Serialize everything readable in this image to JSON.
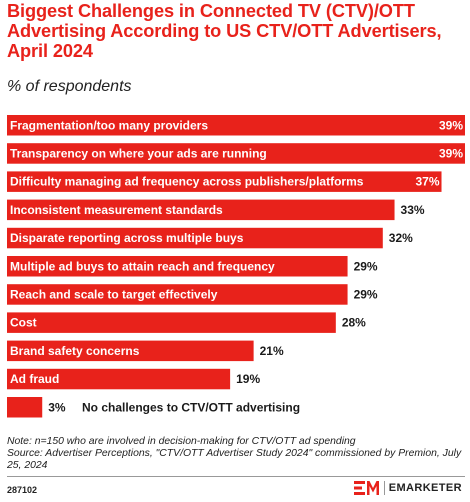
{
  "header": {
    "title": "Biggest Challenges in Connected TV (CTV)/OTT Advertising According to US CTV/OTT Advertisers, April 2024",
    "subtitle": "% of respondents"
  },
  "chart_data": {
    "type": "bar",
    "orientation": "horizontal",
    "bar_color": "#e8221b",
    "categories": [
      "Fragmentation/too many providers",
      "Transparency on where your ads are running",
      "Difficulty managing ad frequency across publishers/platforms",
      "Inconsistent measurement standards",
      "Disparate reporting across multiple buys",
      "Multiple ad buys to attain reach and frequency",
      "Reach and scale to target effectively",
      "Cost",
      "Brand safety concerns",
      "Ad fraud",
      "No challenges to CTV/OTT advertising"
    ],
    "values": [
      39,
      39,
      37,
      33,
      32,
      29,
      29,
      28,
      21,
      19,
      3
    ],
    "value_labels": [
      "39%",
      "39%",
      "37%",
      "33%",
      "32%",
      "29%",
      "29%",
      "28%",
      "21%",
      "19%",
      "3%"
    ],
    "xlim": [
      0,
      39
    ],
    "grid": false,
    "legend": "none"
  },
  "footer": {
    "note": "Note: n=150 who are involved in decision-making for CTV/OTT ad spending",
    "source": "Source: Advertiser Perceptions, \"CTV/OTT Advertiser Study 2024\" commissioned by Premion, July 25, 2024",
    "chart_id": "287102",
    "brand": "EMARKETER",
    "brand_mark": "EM"
  }
}
